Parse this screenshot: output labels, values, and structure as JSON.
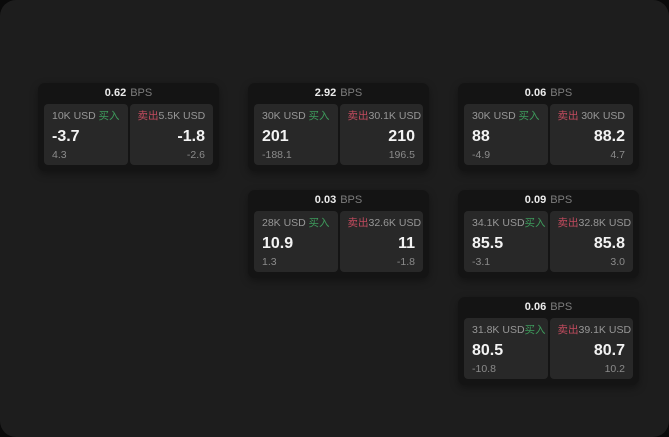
{
  "colors": {
    "page_bg": "#1d1d1d",
    "card_bg": "#141414",
    "panel_bg": "#282828",
    "buy": "#3e9c5c",
    "sell": "#c24b5e"
  },
  "cards": [
    {
      "bps": "0.62",
      "bps_unit": "BPS",
      "buy": {
        "amount": "10K USD",
        "side_label": "买入",
        "value": "-3.7",
        "sub": "4.3"
      },
      "sell": {
        "amount": "5.5K USD",
        "side_label": "卖出",
        "value": "-1.8",
        "sub": "-2.6"
      },
      "grid": {
        "col": 1,
        "row": 1
      }
    },
    {
      "bps": "2.92",
      "bps_unit": "BPS",
      "buy": {
        "amount": "30K USD",
        "side_label": "买入",
        "value": "201",
        "sub": "-188.1"
      },
      "sell": {
        "amount": "30.1K USD",
        "side_label": "卖出",
        "value": "210",
        "sub": "196.5"
      },
      "grid": {
        "col": 2,
        "row": 1
      }
    },
    {
      "bps": "0.06",
      "bps_unit": "BPS",
      "buy": {
        "amount": "30K USD",
        "side_label": "买入",
        "value": "88",
        "sub": "-4.9"
      },
      "sell": {
        "amount": "30K USD",
        "side_label": "卖出",
        "value": "88.2",
        "sub": "4.7"
      },
      "grid": {
        "col": 3,
        "row": 1
      }
    },
    {
      "bps": "0.03",
      "bps_unit": "BPS",
      "buy": {
        "amount": "28K USD",
        "side_label": "买入",
        "value": "10.9",
        "sub": "1.3"
      },
      "sell": {
        "amount": "32.6K USD",
        "side_label": "卖出",
        "value": "11",
        "sub": "-1.8"
      },
      "grid": {
        "col": 2,
        "row": 2
      }
    },
    {
      "bps": "0.09",
      "bps_unit": "BPS",
      "buy": {
        "amount": "34.1K USD",
        "side_label": "买入",
        "value": "85.5",
        "sub": "-3.1"
      },
      "sell": {
        "amount": "32.8K USD",
        "side_label": "卖出",
        "value": "85.8",
        "sub": "3.0"
      },
      "grid": {
        "col": 3,
        "row": 2
      }
    },
    {
      "bps": "0.06",
      "bps_unit": "BPS",
      "buy": {
        "amount": "31.8K USD",
        "side_label": "买入",
        "value": "80.5",
        "sub": "-10.8"
      },
      "sell": {
        "amount": "39.1K USD",
        "side_label": "卖出",
        "value": "80.7",
        "sub": "10.2"
      },
      "grid": {
        "col": 3,
        "row": 3
      }
    }
  ]
}
